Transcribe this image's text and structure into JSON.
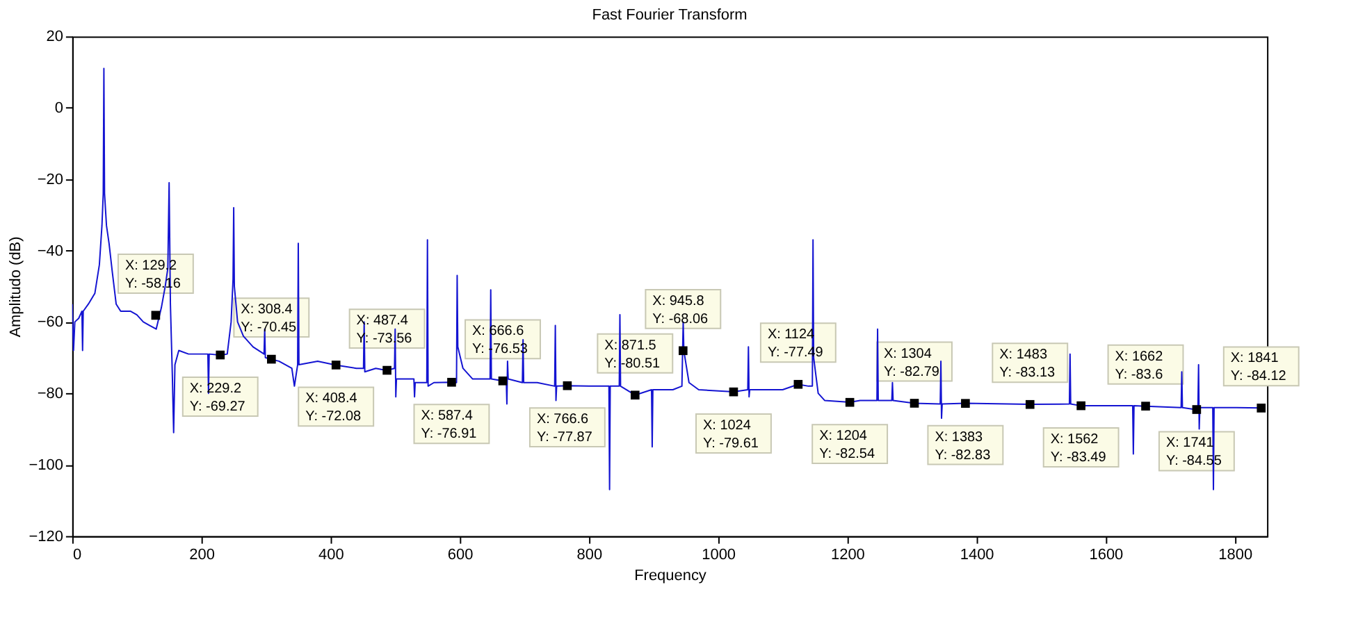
{
  "chart_data": {
    "type": "line",
    "title": "Fast Fourier Transform",
    "xlabel": "Frequency",
    "ylabel": "Amplitudo (dB)",
    "xlim": [
      0,
      1850
    ],
    "xticks": [
      0,
      200,
      400,
      600,
      800,
      1000,
      1200,
      1400,
      1600,
      1800
    ],
    "ylim": [
      -120,
      20
    ],
    "yticks": [
      -120,
      -100,
      -80,
      -60,
      -40,
      -20,
      0,
      20
    ],
    "grid": false,
    "series": [
      {
        "color": "#1414d2",
        "line_style": "solid",
        "x": [
          0,
          2,
          4,
          10,
          15,
          16,
          17,
          25,
          35,
          42,
          46,
          48,
          49,
          50,
          53,
          57,
          62,
          68,
          75,
          90,
          100,
          110,
          120,
          130,
          138,
          144,
          148,
          150,
          152,
          155,
          157,
          159,
          165,
          180,
          200,
          210,
          211,
          212,
          230,
          240,
          246,
          249,
          250,
          251,
          256,
          265,
          280,
          297,
          298,
          299,
          308,
          320,
          340,
          344,
          349,
          350,
          351,
          380,
          408,
          440,
          451,
          452,
          453,
          470,
          487,
          499,
          500,
          501,
          502,
          529,
          530,
          531,
          549,
          550,
          551,
          560,
          587,
          595,
          596,
          597,
          605,
          620,
          647,
          648,
          649,
          666.6,
          672,
          673,
          674,
          675,
          697,
          698,
          699,
          720,
          747,
          748,
          749,
          750,
          766.6,
          800,
          831,
          832,
          833,
          847,
          848,
          849,
          871.5,
          897,
          898,
          899,
          930,
          944,
          946,
          947,
          955,
          970,
          1024,
          1046,
          1047,
          1048,
          1049,
          1100,
          1124,
          1140,
          1146,
          1147,
          1148,
          1155,
          1165,
          1204,
          1220,
          1246,
          1247,
          1248,
          1269,
          1270,
          1271,
          1304,
          1344,
          1345,
          1346,
          1347,
          1383,
          1450,
          1483,
          1544,
          1545,
          1546,
          1562,
          1642,
          1643,
          1644,
          1662,
          1717,
          1718,
          1719,
          1741,
          1743,
          1744,
          1745,
          1746,
          1766,
          1767,
          1768,
          1800,
          1841
        ],
        "values": [
          -55,
          -68,
          -60,
          -59,
          -57,
          -68,
          -57,
          -55,
          -52,
          -44,
          -33,
          -24,
          11,
          -24,
          -33,
          -38,
          -46,
          -55,
          -57,
          -57,
          -58,
          -60,
          -61,
          -62,
          -56,
          -50,
          -45,
          -21,
          -55,
          -75,
          -91,
          -72,
          -68,
          -69,
          -69,
          -69,
          -80,
          -69,
          -69.3,
          -69,
          -60,
          -48,
          -28,
          -50,
          -60,
          -64,
          -67,
          -69,
          -62,
          -70,
          -70.5,
          -71,
          -73,
          -78,
          -72,
          -38,
          -72,
          -71,
          -72.1,
          -73,
          -73,
          -60,
          -74,
          -73,
          -73.6,
          -73,
          -62,
          -81,
          -76,
          -76,
          -81,
          -77,
          -77,
          -37,
          -78,
          -77,
          -76.9,
          -77,
          -47,
          -67,
          -73,
          -76,
          -76,
          -51,
          -76,
          -76.5,
          -76,
          -83,
          -71,
          -76,
          -77,
          -65,
          -77,
          -77,
          -78,
          -61,
          -82,
          -78,
          -77.9,
          -78,
          -78,
          -107,
          -78,
          -78,
          -58,
          -78,
          -80.5,
          -79,
          -95,
          -79,
          -79,
          -78,
          -60,
          -68.1,
          -77,
          -79,
          -79.6,
          -79,
          -67,
          -81,
          -79,
          -79,
          -77.5,
          -78,
          -78,
          -37,
          -70,
          -80,
          -82,
          -82.5,
          -82,
          -82,
          -62,
          -82,
          -82,
          -77,
          -82,
          -82.8,
          -83,
          -71,
          -87,
          -83,
          -82.8,
          -83,
          -83.1,
          -83,
          -69,
          -83,
          -83.5,
          -83.5,
          -97,
          -83.5,
          -83.6,
          -84,
          -74,
          -84,
          -84.6,
          -84,
          -72,
          -90,
          -84,
          -84,
          -107,
          -84,
          -84,
          -84.1
        ]
      },
      {
        "type": "scatter",
        "color": "#000000",
        "marker": "square",
        "x": [
          129.2,
          229.2,
          308.4,
          408.4,
          487.4,
          587.4,
          666.6,
          766.6,
          871.5,
          945.8,
          1024,
          1124,
          1204,
          1304,
          1383,
          1483,
          1562,
          1662,
          1741,
          1841
        ],
        "values": [
          -58.16,
          -69.27,
          -70.45,
          -72.08,
          -73.56,
          -76.91,
          -76.53,
          -77.87,
          -80.51,
          -68.06,
          -79.61,
          -77.49,
          -82.54,
          -82.79,
          -82.83,
          -83.13,
          -83.49,
          -83.6,
          -84.55,
          -84.12
        ]
      }
    ],
    "annotations": [
      {
        "text": "X: 129.2\nY: -58.16",
        "x": 129.2,
        "y": -58.16
      },
      {
        "text": "X: 229.2\nY: -69.27",
        "x": 229.2,
        "y": -69.27
      },
      {
        "text": "X: 308.4\nY: -70.45",
        "x": 308.4,
        "y": -70.45
      },
      {
        "text": "X: 408.4\nY: -72.08",
        "x": 408.4,
        "y": -72.08
      },
      {
        "text": "X: 487.4\nY: -73.56",
        "x": 487.4,
        "y": -73.56
      },
      {
        "text": "X: 587.4\nY: -76.91",
        "x": 587.4,
        "y": -76.91
      },
      {
        "text": "X: 666.6\nY: -76.53",
        "x": 666.6,
        "y": -76.53
      },
      {
        "text": "X: 766.6\nY: -77.87",
        "x": 766.6,
        "y": -77.87
      },
      {
        "text": "X: 871.5\nY: -80.51",
        "x": 871.5,
        "y": -80.51
      },
      {
        "text": "X: 945.8\nY: -68.06",
        "x": 945.8,
        "y": -68.06
      },
      {
        "text": "X: 1024\nY: -79.61",
        "x": 1024,
        "y": -79.61
      },
      {
        "text": "X: 1124\nY: -77.49",
        "x": 1124,
        "y": -77.49
      },
      {
        "text": "X: 1204\nY: -82.54",
        "x": 1204,
        "y": -82.54
      },
      {
        "text": "X: 1304\nY: -82.79",
        "x": 1304,
        "y": -82.79
      },
      {
        "text": "X: 1383\nY: -82.83",
        "x": 1383,
        "y": -82.83
      },
      {
        "text": "X: 1483\nY: -83.13",
        "x": 1483,
        "y": -83.13
      },
      {
        "text": "X: 1562\nY: -83.49",
        "x": 1562,
        "y": -83.49
      },
      {
        "text": "X: 1662\nY: -83.6",
        "x": 1662,
        "y": -83.6
      },
      {
        "text": "X: 1741\nY: -84.55",
        "x": 1741,
        "y": -84.55
      },
      {
        "text": "X: 1841\nY: -84.12",
        "x": 1841,
        "y": -84.12
      }
    ]
  }
}
